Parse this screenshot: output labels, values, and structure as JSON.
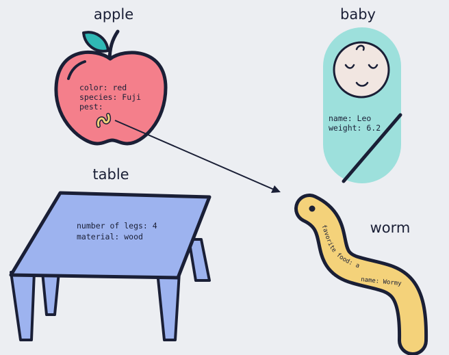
{
  "colors": {
    "outline": "#1a1f36",
    "background": "#eceef2",
    "apple": "#f47f8b",
    "leaf": "#2fb8b5",
    "baby_wrap": "#9de0dc",
    "baby_face": "#f1e6e1",
    "table_top": "#9db3ef",
    "worm": "#f4d27a"
  },
  "apple": {
    "title": "apple",
    "attrs": [
      "color: red",
      "species: Fuji",
      "pest:"
    ]
  },
  "baby": {
    "title": "baby",
    "attrs": [
      "name: Leo",
      "weight: 6.2"
    ]
  },
  "table": {
    "title": "table",
    "attrs": [
      "number of legs: 4",
      "material: wood"
    ]
  },
  "worm": {
    "title": "worm",
    "attr_food": "favorite food: apples",
    "attr_name": "name: Wormy"
  },
  "edges": [
    {
      "from": "apple.pest",
      "to": "worm"
    }
  ]
}
